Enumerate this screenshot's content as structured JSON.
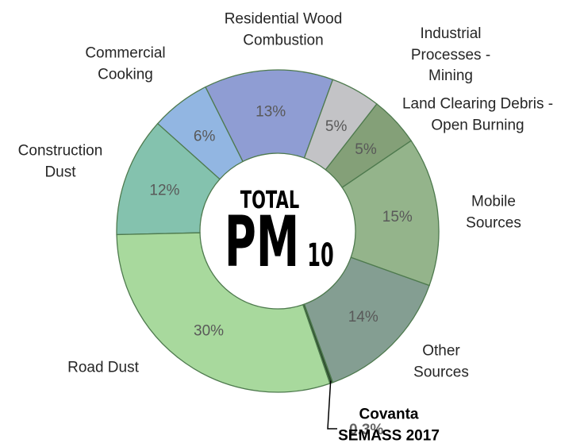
{
  "chart_data": {
    "type": "donut",
    "categories": [
      "Industrial Processes - Mining",
      "Land Clearing Debris - Open Burning",
      "Mobile Sources",
      "Other Sources",
      "Covanta SEMASS 2017",
      "Road Dust",
      "Construction Dust",
      "Commercial Cooking",
      "Residential Wood Combustion"
    ],
    "values": [
      5,
      5,
      15,
      14,
      0.3,
      30,
      12,
      6,
      13
    ],
    "value_labels": [
      "5%",
      "5%",
      "15%",
      "14%",
      "0.3%",
      "30%",
      "12%",
      "6%",
      "13%"
    ],
    "colors": [
      "#c3c3c6",
      "#84a078",
      "#94b48b",
      "#849e92",
      "#2f5030",
      "#a8d99d",
      "#84c2ae",
      "#92b6e2",
      "#8f9dd3"
    ],
    "center_label": {
      "top": "TOTAL",
      "main": "PM",
      "sub": "10"
    }
  }
}
